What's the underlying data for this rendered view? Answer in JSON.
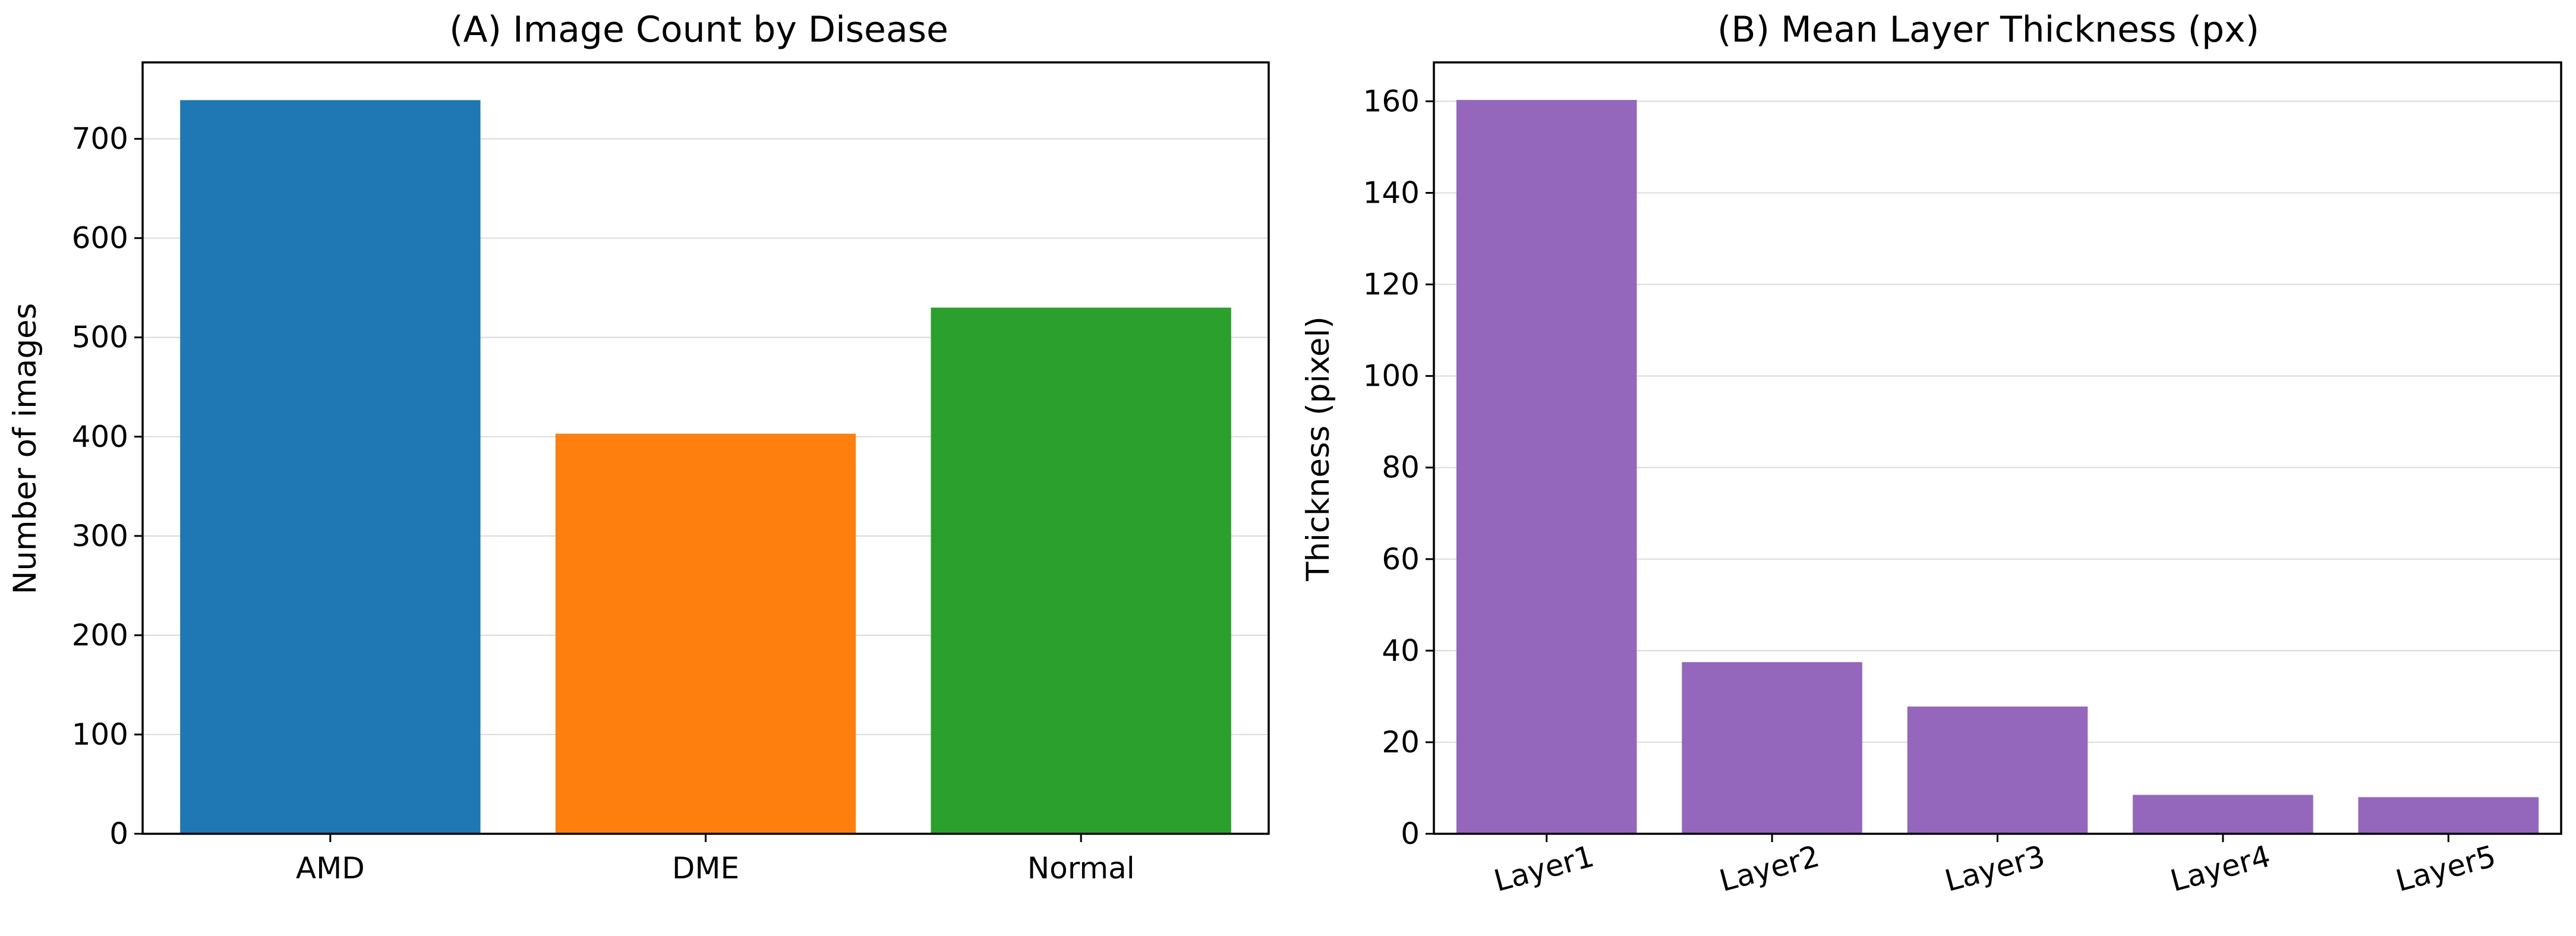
{
  "chart_data": [
    {
      "type": "bar",
      "title": "(A) Image Count by Disease",
      "xlabel": "",
      "ylabel": "Number of images",
      "categories": [
        "AMD",
        "DME",
        "Normal"
      ],
      "values": [
        739,
        403,
        530
      ],
      "colors": [
        "#1f77b4",
        "#ff7f0e",
        "#2ca02c"
      ],
      "ylim": [
        0,
        777
      ],
      "yticks": [
        0,
        100,
        200,
        300,
        400,
        500,
        600,
        700
      ],
      "grid": "y",
      "legend": "none",
      "xtick_rotation": 0
    },
    {
      "type": "bar",
      "title": "(B) Mean Layer Thickness (px)",
      "xlabel": "",
      "ylabel": "Thickness (pixel)",
      "categories": [
        "Layer1",
        "Layer2",
        "Layer3",
        "Layer4",
        "Layer5"
      ],
      "values": [
        160.3,
        37.5,
        27.8,
        8.5,
        8.0
      ],
      "colors": [
        "#9467bd",
        "#9467bd",
        "#9467bd",
        "#9467bd",
        "#9467bd"
      ],
      "ylim": [
        0,
        168.5
      ],
      "yticks": [
        0,
        20,
        40,
        60,
        80,
        100,
        120,
        140,
        160
      ],
      "grid": "y",
      "legend": "none",
      "xtick_rotation": -15
    }
  ]
}
